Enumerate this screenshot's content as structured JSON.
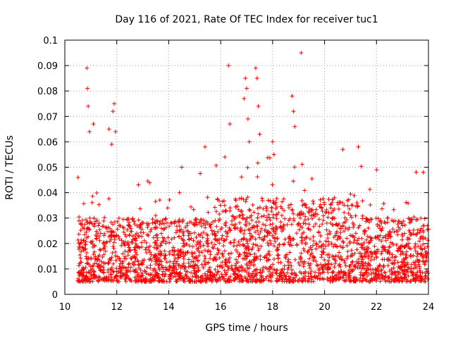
{
  "chart_data": {
    "type": "scatter",
    "title": "Day 116 of 2021, Rate Of TEC Index for receiver tuc1",
    "xlabel": "GPS time / hours",
    "ylabel": "ROTI / TECUs",
    "xlim": [
      10,
      24
    ],
    "ylim": [
      0,
      0.1
    ],
    "xticks": [
      10,
      12,
      14,
      16,
      18,
      20,
      22,
      24
    ],
    "xtick_labels": [
      "10",
      "12",
      "14",
      "16",
      "18",
      "20",
      "22",
      "24"
    ],
    "yticks": [
      0,
      0.01,
      0.02,
      0.03,
      0.04,
      0.05,
      0.06,
      0.07,
      0.08,
      0.09,
      0.1
    ],
    "ytick_labels": [
      "0",
      "0.01",
      "0.02",
      "0.03",
      "0.04",
      "0.05",
      "0.06",
      "0.07",
      "0.08",
      "0.09",
      "0.1"
    ],
    "grid": true,
    "marker": "+",
    "color": "#ff0000",
    "series": [
      {
        "name": "ROTI",
        "x_range": [
          10.5,
          24
        ],
        "typical_y": [
          0.005,
          0.03
        ],
        "notable_points": [
          {
            "x": 10.85,
            "y": 0.089
          },
          {
            "x": 10.87,
            "y": 0.081
          },
          {
            "x": 10.9,
            "y": 0.074
          },
          {
            "x": 10.95,
            "y": 0.064
          },
          {
            "x": 11.1,
            "y": 0.067
          },
          {
            "x": 11.7,
            "y": 0.065
          },
          {
            "x": 11.8,
            "y": 0.059
          },
          {
            "x": 11.85,
            "y": 0.072
          },
          {
            "x": 11.9,
            "y": 0.075
          },
          {
            "x": 11.95,
            "y": 0.064
          },
          {
            "x": 14.5,
            "y": 0.05
          },
          {
            "x": 15.4,
            "y": 0.058
          },
          {
            "x": 16.3,
            "y": 0.09
          },
          {
            "x": 16.35,
            "y": 0.067
          },
          {
            "x": 16.9,
            "y": 0.077
          },
          {
            "x": 16.95,
            "y": 0.085
          },
          {
            "x": 17.0,
            "y": 0.081
          },
          {
            "x": 17.05,
            "y": 0.069
          },
          {
            "x": 17.1,
            "y": 0.06
          },
          {
            "x": 17.35,
            "y": 0.089
          },
          {
            "x": 17.4,
            "y": 0.085
          },
          {
            "x": 17.45,
            "y": 0.074
          },
          {
            "x": 17.5,
            "y": 0.063
          },
          {
            "x": 18.0,
            "y": 0.06
          },
          {
            "x": 18.05,
            "y": 0.055
          },
          {
            "x": 18.75,
            "y": 0.078
          },
          {
            "x": 18.8,
            "y": 0.072
          },
          {
            "x": 18.85,
            "y": 0.066
          },
          {
            "x": 19.1,
            "y": 0.095
          },
          {
            "x": 20.7,
            "y": 0.057
          },
          {
            "x": 21.3,
            "y": 0.058
          },
          {
            "x": 22.0,
            "y": 0.049
          },
          {
            "x": 23.8,
            "y": 0.048
          }
        ]
      }
    ]
  }
}
